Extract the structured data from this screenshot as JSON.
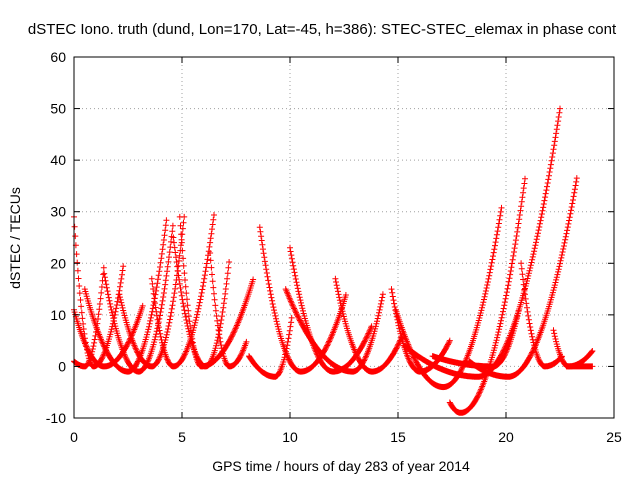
{
  "chart_data": {
    "type": "scatter",
    "title": "dSTEC Iono. truth (dund, Lon=170, Lat=-45, h=386): STEC-STEC_elemax in phase cont",
    "xlabel": "GPS time / hours of day 283 of year 2014",
    "ylabel": "dSTEC  / TECUs",
    "xlim": [
      0,
      25
    ],
    "ylim": [
      -10,
      60
    ],
    "xticks": [
      "0",
      "5",
      "10",
      "15",
      "20",
      "25"
    ],
    "yticks": [
      "-10",
      "0",
      "10",
      "20",
      "30",
      "40",
      "50",
      "60"
    ],
    "grid": true,
    "marker": "+",
    "color": "#ff0000",
    "arcs": [
      {
        "t_start": 0.0,
        "t_min": 0.9,
        "t_end": 2.3,
        "v_start": 29,
        "v_min": 0,
        "v_end": 20
      },
      {
        "t_start": 0.0,
        "t_min": 1.4,
        "t_end": 3.2,
        "v_start": 11,
        "v_min": 0,
        "v_end": 12
      },
      {
        "t_start": 0.0,
        "t_min": 0.5,
        "t_end": 1.4,
        "v_start": 1,
        "v_min": 0,
        "v_end": 20
      },
      {
        "t_start": 0.5,
        "t_min": 2.5,
        "t_end": 4.3,
        "v_start": 15,
        "v_min": -1,
        "v_end": 29
      },
      {
        "t_start": 1.4,
        "t_min": 3.0,
        "t_end": 4.6,
        "v_start": 18,
        "v_min": -1,
        "v_end": 28
      },
      {
        "t_start": 2.1,
        "t_min": 3.6,
        "t_end": 5.1,
        "v_start": 14,
        "v_min": 0,
        "v_end": 29
      },
      {
        "t_start": 3.6,
        "t_min": 4.6,
        "t_end": 6.5,
        "v_start": 17,
        "v_min": 0,
        "v_end": 30
      },
      {
        "t_start": 4.6,
        "t_min": 6.1,
        "t_end": 7.2,
        "v_start": 25,
        "v_min": 0,
        "v_end": 21
      },
      {
        "t_start": 4.9,
        "t_min": 5.9,
        "t_end": 8.3,
        "v_start": 29,
        "v_min": 0,
        "v_end": 17
      },
      {
        "t_start": 6.3,
        "t_min": 7.2,
        "t_end": 8.0,
        "v_start": 22,
        "v_min": 0,
        "v_end": 5
      },
      {
        "t_start": 8.6,
        "t_min": 10.5,
        "t_end": 12.6,
        "v_start": 27,
        "v_min": -1,
        "v_end": 14
      },
      {
        "t_start": 8.1,
        "t_min": 9.3,
        "t_end": 10.1,
        "v_start": 2,
        "v_min": -2,
        "v_end": 10
      },
      {
        "t_start": 10.0,
        "t_min": 12.0,
        "t_end": 13.8,
        "v_start": 23,
        "v_min": -1,
        "v_end": 8
      },
      {
        "t_start": 9.8,
        "t_min": 12.9,
        "t_end": 14.3,
        "v_start": 15,
        "v_min": -1,
        "v_end": 14
      },
      {
        "t_start": 12.1,
        "t_min": 13.8,
        "t_end": 15.2,
        "v_start": 17,
        "v_min": -1,
        "v_end": 6
      },
      {
        "t_start": 14.7,
        "t_min": 16.0,
        "t_end": 17.4,
        "v_start": 15,
        "v_min": -1,
        "v_end": 5
      },
      {
        "t_start": 14.9,
        "t_min": 17.1,
        "t_end": 19.8,
        "v_start": 11,
        "v_min": -4,
        "v_end": 31
      },
      {
        "t_start": 17.4,
        "t_min": 17.9,
        "t_end": 20.9,
        "v_start": -7,
        "v_min": -9,
        "v_end": 37
      },
      {
        "t_start": 15.3,
        "t_min": 18.7,
        "t_end": 22.5,
        "v_start": 4,
        "v_min": -2,
        "v_end": 50
      },
      {
        "t_start": 16.6,
        "t_min": 19.4,
        "t_end": 20.6,
        "v_start": 2,
        "v_min": 0,
        "v_end": 11
      },
      {
        "t_start": 18.3,
        "t_min": 20.1,
        "t_end": 23.3,
        "v_start": 1,
        "v_min": -2,
        "v_end": 37
      },
      {
        "t_start": 20.7,
        "t_min": 21.8,
        "t_end": 22.6,
        "v_start": 20,
        "v_min": 0,
        "v_end": 2
      },
      {
        "t_start": 22.2,
        "t_min": 22.9,
        "t_end": 24.0,
        "v_start": 7,
        "v_min": 0,
        "v_end": 3
      },
      {
        "t_start": 22.8,
        "t_min": 23.4,
        "t_end": 24.0,
        "v_start": 0,
        "v_min": 0,
        "v_end": 0
      }
    ]
  }
}
